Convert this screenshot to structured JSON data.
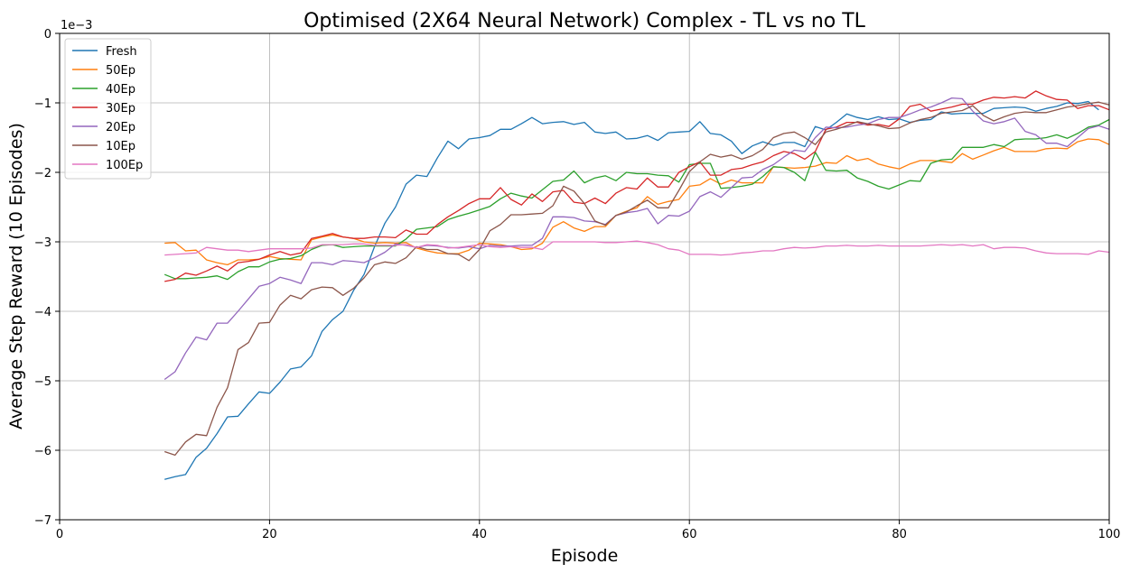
{
  "chart_data": {
    "type": "line",
    "title": "Optimised (2X64 Neural Network) Complex - TL vs no TL",
    "xlabel": "Episode",
    "ylabel": "Average Step Reward (10 Episodes)",
    "y_scale_label": "1e−3",
    "xlim": [
      0,
      100
    ],
    "ylim": [
      -7,
      0
    ],
    "x_ticks": [
      0,
      20,
      40,
      60,
      80,
      100
    ],
    "y_ticks": [
      0,
      -1,
      -2,
      -3,
      -4,
      -5,
      -6,
      -7
    ],
    "x_tick_labels": [
      "0",
      "20",
      "40",
      "60",
      "80",
      "100"
    ],
    "y_tick_labels": [
      "0",
      "−1",
      "−2",
      "−3",
      "−4",
      "−5",
      "−6",
      "−7"
    ],
    "grid": true,
    "legend_position": "top-left",
    "x_start": 10,
    "x_step": 1,
    "series": [
      {
        "name": "Fresh",
        "color": "#1f77b4",
        "values": [
          -6.42,
          -6.38,
          -6.35,
          -6.1,
          -5.97,
          -5.76,
          -5.52,
          -5.51,
          -5.33,
          -5.16,
          -5.18,
          -5.02,
          -4.83,
          -4.8,
          -4.64,
          -4.29,
          -4.12,
          -4.0,
          -3.7,
          -3.47,
          -3.07,
          -2.73,
          -2.5,
          -2.17,
          -2.04,
          -2.06,
          -1.79,
          -1.55,
          -1.66,
          -1.52,
          -1.5,
          -1.47,
          -1.38,
          -1.38,
          -1.3,
          -1.21,
          -1.3,
          -1.28,
          -1.27,
          -1.31,
          -1.28,
          -1.42,
          -1.44,
          -1.42,
          -1.52,
          -1.51,
          -1.47,
          -1.54,
          -1.43,
          -1.42,
          -1.41,
          -1.27,
          -1.44,
          -1.46,
          -1.55,
          -1.73,
          -1.62,
          -1.56,
          -1.61,
          -1.57,
          -1.57,
          -1.63,
          -1.34,
          -1.39,
          -1.28,
          -1.16,
          -1.21,
          -1.24,
          -1.2,
          -1.24,
          -1.23,
          -1.28,
          -1.25,
          -1.24,
          -1.13,
          -1.16,
          -1.15,
          -1.15,
          -1.15,
          -1.08,
          -1.07,
          -1.06,
          -1.07,
          -1.12,
          -1.08,
          -1.05,
          -1.0,
          -1.01,
          -0.98,
          -1.1
        ]
      },
      {
        "name": "50Ep",
        "color": "#ff7f0e",
        "values": [
          -3.02,
          -3.01,
          -3.13,
          -3.12,
          -3.26,
          -3.3,
          -3.33,
          -3.26,
          -3.26,
          -3.25,
          -3.21,
          -3.24,
          -3.25,
          -3.26,
          -2.97,
          -2.93,
          -2.9,
          -2.93,
          -2.95,
          -3.0,
          -3.02,
          -3.01,
          -3.02,
          -3.01,
          -3.09,
          -3.13,
          -3.16,
          -3.17,
          -3.17,
          -3.12,
          -3.02,
          -3.03,
          -3.04,
          -3.07,
          -3.11,
          -3.1,
          -3.02,
          -2.79,
          -2.71,
          -2.8,
          -2.85,
          -2.78,
          -2.78,
          -2.62,
          -2.56,
          -2.51,
          -2.35,
          -2.46,
          -2.42,
          -2.39,
          -2.2,
          -2.18,
          -2.09,
          -2.17,
          -2.11,
          -2.15,
          -2.15,
          -2.15,
          -1.92,
          -1.93,
          -1.94,
          -1.93,
          -1.91,
          -1.86,
          -1.87,
          -1.76,
          -1.83,
          -1.8,
          -1.88,
          -1.92,
          -1.95,
          -1.88,
          -1.83,
          -1.83,
          -1.84,
          -1.86,
          -1.73,
          -1.81,
          -1.75,
          -1.69,
          -1.64,
          -1.7,
          -1.7,
          -1.7,
          -1.66,
          -1.65,
          -1.66,
          -1.56,
          -1.52,
          -1.53,
          -1.6
        ]
      },
      {
        "name": "40Ep",
        "color": "#2ca02c",
        "values": [
          -3.47,
          -3.53,
          -3.53,
          -3.52,
          -3.51,
          -3.49,
          -3.54,
          -3.43,
          -3.36,
          -3.36,
          -3.29,
          -3.25,
          -3.24,
          -3.2,
          -3.11,
          -3.05,
          -3.04,
          -3.08,
          -3.07,
          -3.06,
          -3.06,
          -3.06,
          -3.06,
          -2.96,
          -2.82,
          -2.8,
          -2.78,
          -2.68,
          -2.63,
          -2.59,
          -2.54,
          -2.49,
          -2.38,
          -2.3,
          -2.34,
          -2.37,
          -2.25,
          -2.13,
          -2.11,
          -1.98,
          -2.15,
          -2.08,
          -2.05,
          -2.12,
          -2.0,
          -2.02,
          -2.02,
          -2.04,
          -2.05,
          -2.14,
          -1.89,
          -1.87,
          -1.87,
          -2.23,
          -2.22,
          -2.2,
          -2.17,
          -2.06,
          -1.92,
          -1.93,
          -2.0,
          -2.12,
          -1.71,
          -1.97,
          -1.98,
          -1.97,
          -2.08,
          -2.13,
          -2.2,
          -2.24,
          -2.18,
          -2.12,
          -2.13,
          -1.87,
          -1.82,
          -1.81,
          -1.64,
          -1.64,
          -1.64,
          -1.6,
          -1.63,
          -1.53,
          -1.52,
          -1.52,
          -1.5,
          -1.46,
          -1.51,
          -1.44,
          -1.35,
          -1.32,
          -1.24
        ]
      },
      {
        "name": "30Ep",
        "color": "#d62728",
        "values": [
          -3.57,
          -3.54,
          -3.45,
          -3.48,
          -3.42,
          -3.35,
          -3.42,
          -3.3,
          -3.28,
          -3.25,
          -3.19,
          -3.14,
          -3.19,
          -3.16,
          -2.95,
          -2.92,
          -2.88,
          -2.93,
          -2.95,
          -2.95,
          -2.93,
          -2.93,
          -2.94,
          -2.83,
          -2.89,
          -2.89,
          -2.75,
          -2.64,
          -2.55,
          -2.45,
          -2.38,
          -2.38,
          -2.22,
          -2.39,
          -2.47,
          -2.31,
          -2.42,
          -2.28,
          -2.26,
          -2.43,
          -2.45,
          -2.37,
          -2.45,
          -2.3,
          -2.22,
          -2.24,
          -2.08,
          -2.21,
          -2.21,
          -2.0,
          -1.92,
          -1.85,
          -2.04,
          -2.04,
          -1.96,
          -1.94,
          -1.89,
          -1.85,
          -1.76,
          -1.7,
          -1.73,
          -1.81,
          -1.7,
          -1.38,
          -1.35,
          -1.28,
          -1.28,
          -1.32,
          -1.31,
          -1.34,
          -1.23,
          -1.05,
          -1.02,
          -1.12,
          -1.09,
          -1.06,
          -1.02,
          -1.02,
          -0.96,
          -0.92,
          -0.93,
          -0.91,
          -0.93,
          -0.83,
          -0.9,
          -0.95,
          -0.96,
          -1.08,
          -1.04,
          -1.04,
          -1.1
        ]
      },
      {
        "name": "20Ep",
        "color": "#9467bd",
        "values": [
          -4.98,
          -4.87,
          -4.6,
          -4.37,
          -4.41,
          -4.17,
          -4.17,
          -4.0,
          -3.82,
          -3.64,
          -3.6,
          -3.51,
          -3.55,
          -3.6,
          -3.3,
          -3.3,
          -3.33,
          -3.27,
          -3.28,
          -3.3,
          -3.23,
          -3.15,
          -3.03,
          -3.05,
          -3.08,
          -3.05,
          -3.06,
          -3.08,
          -3.09,
          -3.07,
          -3.1,
          -3.05,
          -3.06,
          -3.06,
          -3.05,
          -3.05,
          -2.95,
          -2.64,
          -2.64,
          -2.65,
          -2.7,
          -2.71,
          -2.75,
          -2.62,
          -2.58,
          -2.56,
          -2.52,
          -2.74,
          -2.62,
          -2.63,
          -2.56,
          -2.35,
          -2.28,
          -2.36,
          -2.22,
          -2.08,
          -2.07,
          -1.96,
          -1.89,
          -1.78,
          -1.68,
          -1.7,
          -1.5,
          -1.35,
          -1.36,
          -1.35,
          -1.32,
          -1.3,
          -1.24,
          -1.21,
          -1.21,
          -1.16,
          -1.1,
          -1.06,
          -1.0,
          -0.93,
          -0.94,
          -1.12,
          -1.26,
          -1.3,
          -1.27,
          -1.22,
          -1.41,
          -1.46,
          -1.58,
          -1.58,
          -1.63,
          -1.5,
          -1.37,
          -1.33,
          -1.38
        ]
      },
      {
        "name": "10Ep",
        "color": "#8c564b",
        "values": [
          -6.02,
          -6.07,
          -5.88,
          -5.77,
          -5.79,
          -5.38,
          -5.1,
          -4.55,
          -4.45,
          -4.17,
          -4.16,
          -3.91,
          -3.77,
          -3.82,
          -3.69,
          -3.65,
          -3.66,
          -3.77,
          -3.67,
          -3.52,
          -3.33,
          -3.29,
          -3.31,
          -3.23,
          -3.07,
          -3.11,
          -3.11,
          -3.17,
          -3.18,
          -3.27,
          -3.11,
          -2.84,
          -2.75,
          -2.61,
          -2.61,
          -2.6,
          -2.59,
          -2.48,
          -2.2,
          -2.27,
          -2.45,
          -2.7,
          -2.76,
          -2.62,
          -2.57,
          -2.48,
          -2.4,
          -2.51,
          -2.51,
          -2.26,
          -1.99,
          -1.85,
          -1.74,
          -1.78,
          -1.75,
          -1.81,
          -1.76,
          -1.67,
          -1.5,
          -1.44,
          -1.42,
          -1.5,
          -1.6,
          -1.42,
          -1.38,
          -1.33,
          -1.27,
          -1.3,
          -1.33,
          -1.37,
          -1.36,
          -1.29,
          -1.24,
          -1.21,
          -1.15,
          -1.13,
          -1.11,
          -1.04,
          -1.18,
          -1.26,
          -1.2,
          -1.15,
          -1.13,
          -1.14,
          -1.14,
          -1.1,
          -1.06,
          -1.04,
          -1.01,
          -0.99,
          -1.03
        ]
      },
      {
        "name": "100Ep",
        "color": "#e377c2",
        "values": [
          -3.19,
          -3.18,
          -3.17,
          -3.16,
          -3.08,
          -3.1,
          -3.12,
          -3.12,
          -3.14,
          -3.12,
          -3.1,
          -3.1,
          -3.1,
          -3.1,
          -3.09,
          -3.04,
          -3.04,
          -3.04,
          -3.03,
          -3.03,
          -3.05,
          -3.05,
          -3.05,
          -3.04,
          -3.08,
          -3.04,
          -3.05,
          -3.09,
          -3.08,
          -3.06,
          -3.04,
          -3.07,
          -3.08,
          -3.07,
          -3.08,
          -3.08,
          -3.11,
          -3.0,
          -3.0,
          -3.0,
          -3.0,
          -3.0,
          -3.01,
          -3.01,
          -3.0,
          -2.99,
          -3.01,
          -3.04,
          -3.1,
          -3.12,
          -3.18,
          -3.18,
          -3.18,
          -3.19,
          -3.18,
          -3.16,
          -3.15,
          -3.13,
          -3.13,
          -3.1,
          -3.08,
          -3.09,
          -3.08,
          -3.06,
          -3.06,
          -3.05,
          -3.06,
          -3.06,
          -3.05,
          -3.06,
          -3.06,
          -3.06,
          -3.06,
          -3.05,
          -3.04,
          -3.05,
          -3.04,
          -3.06,
          -3.04,
          -3.1,
          -3.08,
          -3.08,
          -3.09,
          -3.13,
          -3.16,
          -3.17,
          -3.17,
          -3.17,
          -3.18,
          -3.13,
          -3.15
        ]
      }
    ]
  }
}
